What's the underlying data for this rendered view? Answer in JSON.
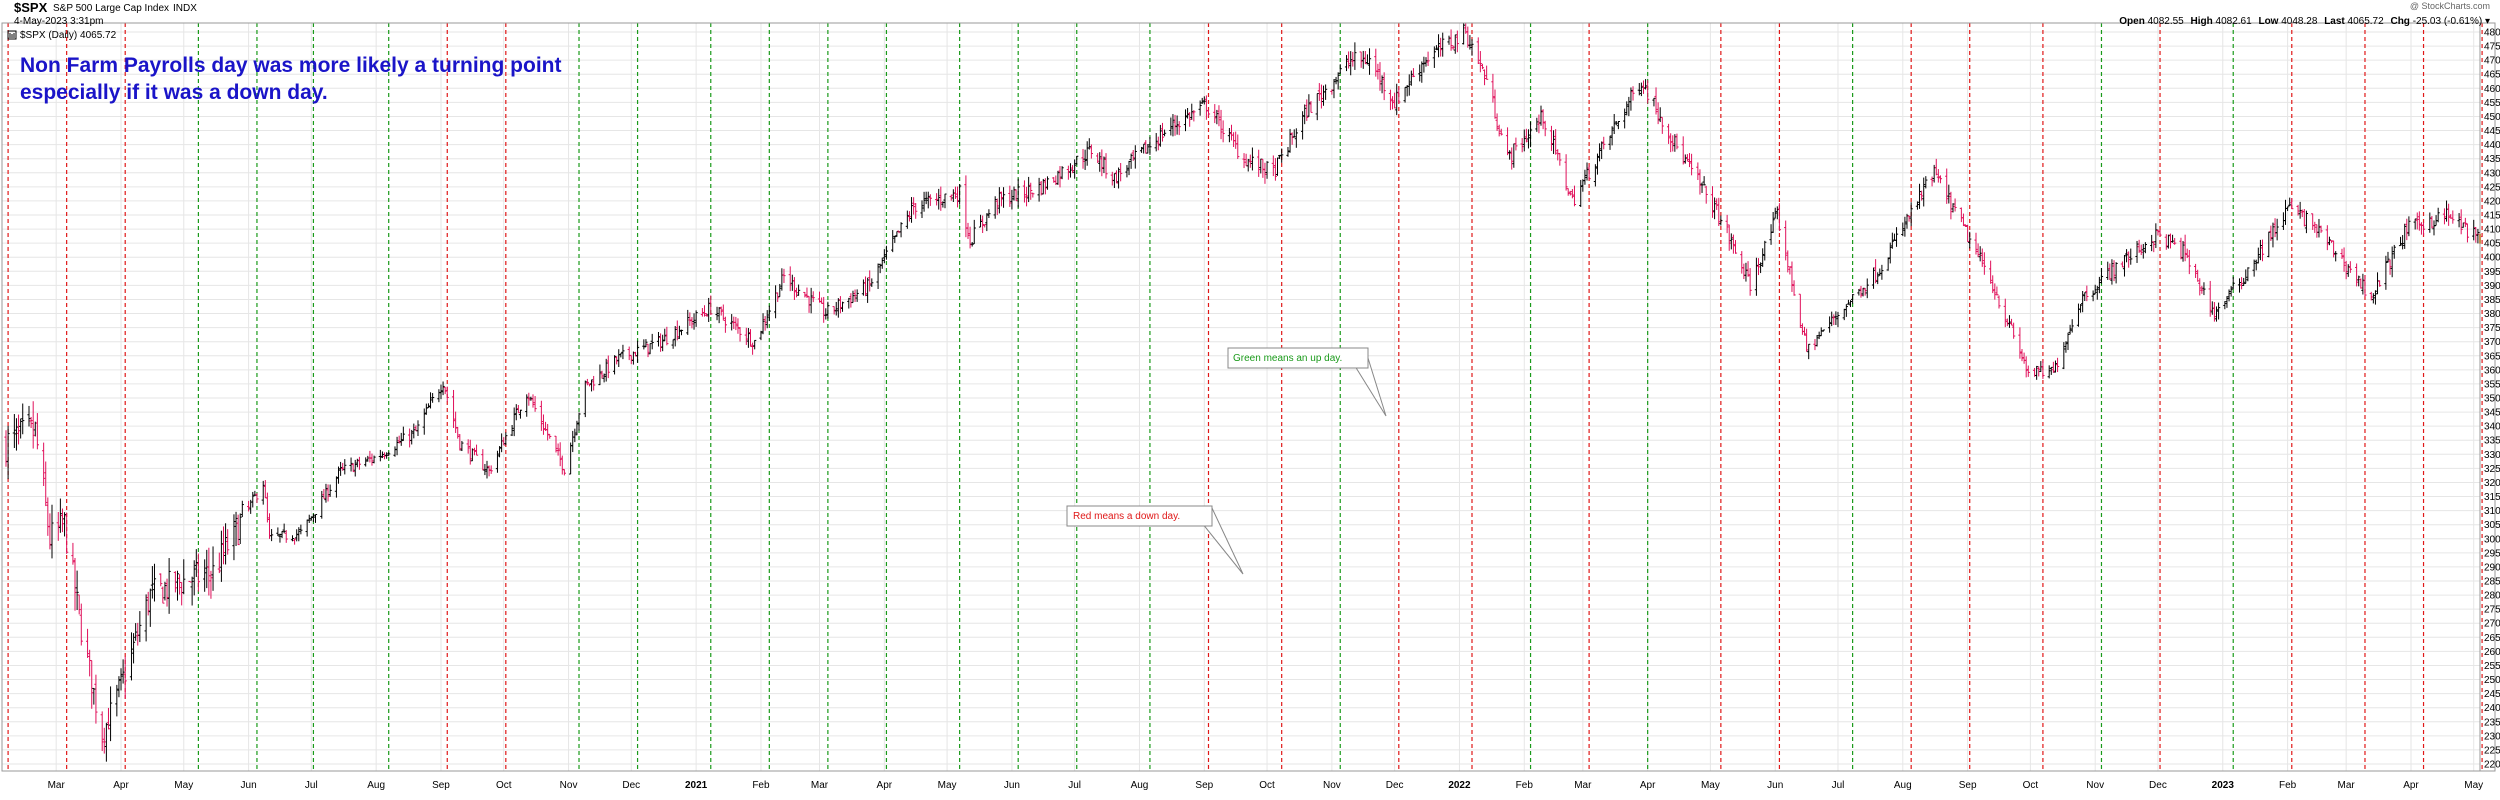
{
  "header": {
    "symbol": "$SPX",
    "name": "S&P 500 Large Cap Index",
    "exchange": "INDX",
    "date": "4-May-2023 3:31pm",
    "legend": "$SPX (Daily) 4065.72",
    "watermark": "@ StockCharts.com",
    "open_label": "Open",
    "open": "4082.55",
    "high_label": "High",
    "high": "4082.61",
    "low_label": "Low",
    "low": "4048.28",
    "last_label": "Last",
    "last": "4065.72",
    "chg_label": "Chg",
    "chg": "-25.03 (-0.61%)"
  },
  "annotation": {
    "line1": "Non Farm Payrolls day was more likely a turning point",
    "line2": "especially if it was a down day."
  },
  "callouts": {
    "green": "Green means an up day.",
    "red": "Red means a down day."
  },
  "colors": {
    "up_bar": "#000000",
    "down_bar": "#e0105a",
    "green_line": "#1a9a1a",
    "red_line": "#e01818",
    "annotation": "#1a14c8",
    "grid": "#e6e6e6"
  },
  "chart_data": {
    "type": "line",
    "title": "S&P 500 Large Cap Index",
    "ylim": [
      2200,
      4800
    ],
    "y_scale": "linear",
    "y_ticks": [
      2200,
      2250,
      2300,
      2350,
      2400,
      2450,
      2500,
      2550,
      2600,
      2650,
      2700,
      2750,
      2800,
      2850,
      2900,
      2950,
      3000,
      3050,
      3100,
      3150,
      3200,
      3250,
      3300,
      3350,
      3400,
      3450,
      3500,
      3550,
      3600,
      3650,
      3700,
      3750,
      3800,
      3850,
      3900,
      3950,
      4000,
      4050,
      4100,
      4150,
      4200,
      4250,
      4300,
      4350,
      4400,
      4450,
      4500,
      4550,
      4600,
      4650,
      4700,
      4750,
      4800
    ],
    "x_range": [
      "2020-02-06",
      "2023-05-04"
    ],
    "x_ticks": [
      {
        "label": "Mar",
        "date": "2020-03-01",
        "bold": false
      },
      {
        "label": "Apr",
        "date": "2020-04-01",
        "bold": false
      },
      {
        "label": "May",
        "date": "2020-05-01",
        "bold": false
      },
      {
        "label": "Jun",
        "date": "2020-06-01",
        "bold": false
      },
      {
        "label": "Jul",
        "date": "2020-07-01",
        "bold": false
      },
      {
        "label": "Aug",
        "date": "2020-08-01",
        "bold": false
      },
      {
        "label": "Sep",
        "date": "2020-09-01",
        "bold": false
      },
      {
        "label": "Oct",
        "date": "2020-10-01",
        "bold": false
      },
      {
        "label": "Nov",
        "date": "2020-11-01",
        "bold": false
      },
      {
        "label": "Dec",
        "date": "2020-12-01",
        "bold": false
      },
      {
        "label": "2021",
        "date": "2021-01-01",
        "bold": true
      },
      {
        "label": "Feb",
        "date": "2021-02-01",
        "bold": false
      },
      {
        "label": "Mar",
        "date": "2021-03-01",
        "bold": false
      },
      {
        "label": "Apr",
        "date": "2021-04-01",
        "bold": false
      },
      {
        "label": "May",
        "date": "2021-05-01",
        "bold": false
      },
      {
        "label": "Jun",
        "date": "2021-06-01",
        "bold": false
      },
      {
        "label": "Jul",
        "date": "2021-07-01",
        "bold": false
      },
      {
        "label": "Aug",
        "date": "2021-08-01",
        "bold": false
      },
      {
        "label": "Sep",
        "date": "2021-09-01",
        "bold": false
      },
      {
        "label": "Oct",
        "date": "2021-10-01",
        "bold": false
      },
      {
        "label": "Nov",
        "date": "2021-11-01",
        "bold": false
      },
      {
        "label": "Dec",
        "date": "2021-12-01",
        "bold": false
      },
      {
        "label": "2022",
        "date": "2022-01-01",
        "bold": true
      },
      {
        "label": "Feb",
        "date": "2022-02-01",
        "bold": false
      },
      {
        "label": "Mar",
        "date": "2022-03-01",
        "bold": false
      },
      {
        "label": "Apr",
        "date": "2022-04-01",
        "bold": false
      },
      {
        "label": "May",
        "date": "2022-05-01",
        "bold": false
      },
      {
        "label": "Jun",
        "date": "2022-06-01",
        "bold": false
      },
      {
        "label": "Jul",
        "date": "2022-07-01",
        "bold": false
      },
      {
        "label": "Aug",
        "date": "2022-08-01",
        "bold": false
      },
      {
        "label": "Sep",
        "date": "2022-09-01",
        "bold": false
      },
      {
        "label": "Oct",
        "date": "2022-10-01",
        "bold": false
      },
      {
        "label": "Nov",
        "date": "2022-11-01",
        "bold": false
      },
      {
        "label": "Dec",
        "date": "2022-12-01",
        "bold": false
      },
      {
        "label": "2023",
        "date": "2023-01-01",
        "bold": true
      },
      {
        "label": "Feb",
        "date": "2023-02-01",
        "bold": false
      },
      {
        "label": "Mar",
        "date": "2023-03-01",
        "bold": false
      },
      {
        "label": "Apr",
        "date": "2023-04-01",
        "bold": false
      },
      {
        "label": "May",
        "date": "2023-05-01",
        "bold": false
      }
    ],
    "payroll_days": [
      {
        "date": "2020-02-07",
        "up": false
      },
      {
        "date": "2020-03-06",
        "up": false
      },
      {
        "date": "2020-04-03",
        "up": false
      },
      {
        "date": "2020-05-08",
        "up": true
      },
      {
        "date": "2020-06-05",
        "up": true
      },
      {
        "date": "2020-07-02",
        "up": true
      },
      {
        "date": "2020-08-07",
        "up": true
      },
      {
        "date": "2020-09-04",
        "up": false
      },
      {
        "date": "2020-10-02",
        "up": false
      },
      {
        "date": "2020-11-06",
        "up": true
      },
      {
        "date": "2020-12-04",
        "up": true
      },
      {
        "date": "2021-01-08",
        "up": true
      },
      {
        "date": "2021-02-05",
        "up": true
      },
      {
        "date": "2021-03-05",
        "up": true
      },
      {
        "date": "2021-04-02",
        "up": true
      },
      {
        "date": "2021-05-07",
        "up": true
      },
      {
        "date": "2021-06-04",
        "up": true
      },
      {
        "date": "2021-07-02",
        "up": true
      },
      {
        "date": "2021-08-06",
        "up": true
      },
      {
        "date": "2021-09-03",
        "up": false
      },
      {
        "date": "2021-10-08",
        "up": false
      },
      {
        "date": "2021-11-05",
        "up": true
      },
      {
        "date": "2021-12-03",
        "up": false
      },
      {
        "date": "2022-01-07",
        "up": false
      },
      {
        "date": "2022-02-04",
        "up": true
      },
      {
        "date": "2022-03-04",
        "up": false
      },
      {
        "date": "2022-04-01",
        "up": true
      },
      {
        "date": "2022-05-06",
        "up": false
      },
      {
        "date": "2022-06-03",
        "up": false
      },
      {
        "date": "2022-07-08",
        "up": true
      },
      {
        "date": "2022-08-05",
        "up": false
      },
      {
        "date": "2022-09-02",
        "up": false
      },
      {
        "date": "2022-10-07",
        "up": false
      },
      {
        "date": "2022-11-04",
        "up": true
      },
      {
        "date": "2022-12-02",
        "up": false
      },
      {
        "date": "2023-01-06",
        "up": true
      },
      {
        "date": "2023-02-03",
        "up": false
      },
      {
        "date": "2023-03-10",
        "up": false
      },
      {
        "date": "2023-04-07",
        "up": false
      },
      {
        "date": "2023-05-05",
        "up": false
      }
    ],
    "series": [
      {
        "type": "ohlc",
        "x": [
          "2020-02-06",
          "2020-02-20",
          "2020-02-27",
          "2020-03-05",
          "2020-03-12",
          "2020-03-23",
          "2020-04-01",
          "2020-04-15",
          "2020-05-01",
          "2020-05-15",
          "2020-06-08",
          "2020-06-11",
          "2020-06-26",
          "2020-07-15",
          "2020-08-01",
          "2020-08-20",
          "2020-09-02",
          "2020-09-10",
          "2020-09-24",
          "2020-10-12",
          "2020-10-30",
          "2020-11-09",
          "2020-11-25",
          "2020-12-15",
          "2021-01-08",
          "2021-01-29",
          "2021-02-12",
          "2021-03-04",
          "2021-03-25",
          "2021-04-15",
          "2021-05-07",
          "2021-05-12",
          "2021-05-25",
          "2021-06-15",
          "2021-07-09",
          "2021-07-20",
          "2021-08-15",
          "2021-09-02",
          "2021-09-20",
          "2021-10-04",
          "2021-10-20",
          "2021-11-10",
          "2021-11-19",
          "2021-12-01",
          "2021-12-15",
          "2022-01-04",
          "2022-01-14",
          "2022-01-24",
          "2022-02-10",
          "2022-02-24",
          "2022-03-29",
          "2022-04-15",
          "2022-05-05",
          "2022-05-20",
          "2022-06-02",
          "2022-06-16",
          "2022-07-01",
          "2022-07-20",
          "2022-08-16",
          "2022-09-12",
          "2022-09-30",
          "2022-10-12",
          "2022-10-25",
          "2022-11-10",
          "2022-12-01",
          "2022-12-13",
          "2022-12-28",
          "2023-01-10",
          "2023-02-02",
          "2023-02-15",
          "2023-03-13",
          "2023-03-30",
          "2023-04-18",
          "2023-05-04"
        ],
        "close": [
          3340,
          3380,
          3000,
          3050,
          2720,
          2300,
          2480,
          2800,
          2850,
          2880,
          3200,
          3000,
          3020,
          3240,
          3290,
          3380,
          3560,
          3340,
          3240,
          3520,
          3250,
          3540,
          3640,
          3700,
          3820,
          3700,
          3930,
          3800,
          3900,
          4180,
          4230,
          4060,
          4200,
          4250,
          4380,
          4280,
          4460,
          4540,
          4350,
          4300,
          4520,
          4700,
          4700,
          4550,
          4700,
          4800,
          4630,
          4350,
          4500,
          4200,
          4630,
          4390,
          4150,
          3900,
          4150,
          3670,
          3800,
          3950,
          4300,
          3920,
          3590,
          3590,
          3850,
          3960,
          4080,
          4020,
          3800,
          3920,
          4180,
          4100,
          3860,
          4100,
          4150,
          4065
        ]
      }
    ]
  }
}
